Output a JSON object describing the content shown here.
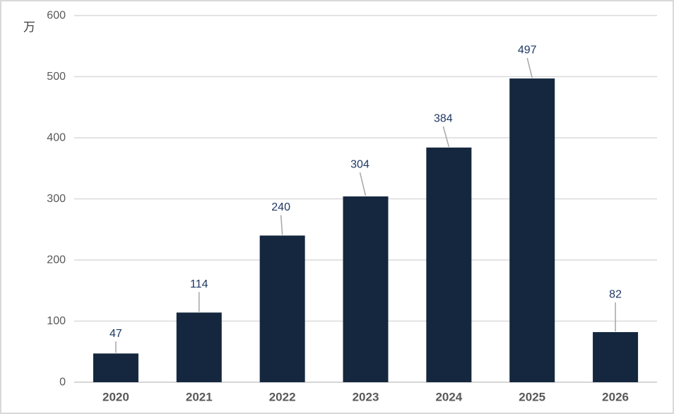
{
  "chart_data": {
    "type": "bar",
    "title": "",
    "xlabel": "",
    "ylabel": "",
    "unit_label": "万",
    "categories": [
      "2020",
      "2021",
      "2022",
      "2023",
      "2024",
      "2025",
      "2026"
    ],
    "values": [
      47,
      114,
      240,
      304,
      384,
      497,
      82
    ],
    "data_labels": [
      "47",
      "114",
      "240",
      "304",
      "384",
      "497",
      "82"
    ],
    "ylim": [
      0,
      600
    ],
    "yticks": [
      0,
      100,
      200,
      300,
      400,
      500,
      600
    ],
    "grid": true,
    "legend": false,
    "colors": {
      "bar": "#14273E",
      "data_label": "#1F3864",
      "y_tick_label": "#595959",
      "category_label": "#595959",
      "unit_label": "#404040",
      "gridline": "#DADADA",
      "zero_line": "#D6D6D6",
      "leader_line": "#A6A6A6",
      "frame_border": "#D9D9D9",
      "background": "#FFFFFF"
    }
  }
}
